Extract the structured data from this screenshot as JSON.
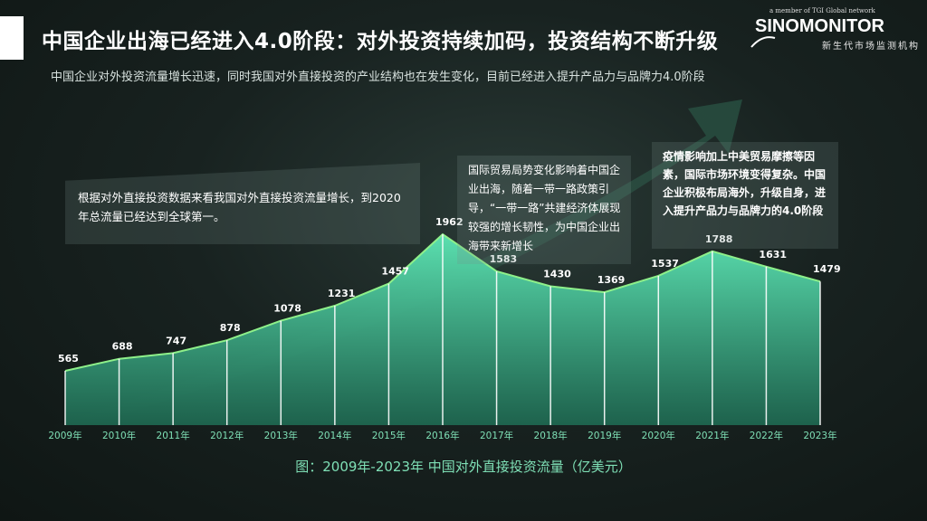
{
  "header": {
    "title": "中国企业出海已经进入4.0阶段：对外投资持续加码，投资结构不断升级",
    "subtitle": "中国企业对外投资流量增长迅速，同时我国对外直接投资的产业结构也在发生变化，目前已经进入提升产品力与品牌力4.0阶段"
  },
  "logo": {
    "tagline": "a member of TGI Global network",
    "name": "SINOMONITOR",
    "sub": "新生代市场监测机构"
  },
  "panels": {
    "p1": "根据对外直接投资数据来看我国对外直接投资流量增长，到2020年总流量已经达到全球第一。",
    "p2": "国际贸易局势变化影响着中国企业出海，随着一带一路政策引导，“一带一路”共建经济体展现较强的增长韧性，为中国企业出海带来新增长",
    "p3": "疫情影响加上中美贸易摩擦等因素，国际市场环境变得复杂。中国企业积极布局海外，升级自身，进入提升产品力与品牌力的4.0阶段"
  },
  "caption": "图：2009年-2023年 中国对外直接投资流量（亿美元）",
  "colors": {
    "area_top": "#5be0b0",
    "area_bottom": "#1f6e55",
    "line": "#8ef08a",
    "label": "#ffffff",
    "axis_label": "#7fe0b6"
  },
  "chart_data": {
    "type": "area",
    "categories": [
      "2009年",
      "2010年",
      "2011年",
      "2012年",
      "2013年",
      "2014年",
      "2015年",
      "2016年",
      "2017年",
      "2018年",
      "2019年",
      "2020年",
      "2021年",
      "2022年",
      "2023年"
    ],
    "values": [
      565,
      688,
      747,
      878,
      1078,
      1231,
      1457,
      1962,
      1583,
      1430,
      1369,
      1537,
      1788,
      1631,
      1479
    ],
    "unit": "亿美元",
    "title": "图：2009年-2023年 中国对外直接投资流量（亿美元）",
    "grid": false,
    "legend": "none"
  }
}
